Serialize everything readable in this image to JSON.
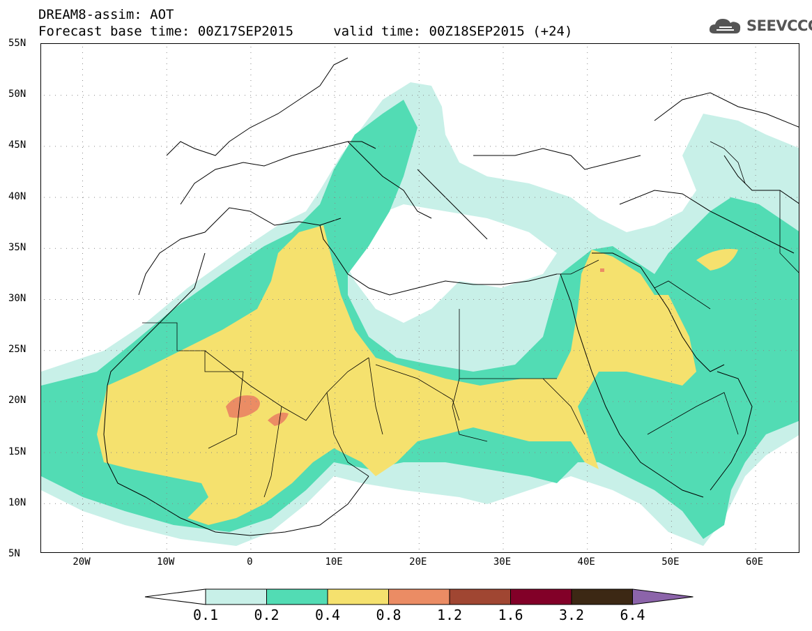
{
  "header": {
    "title_line1": "DREAM8-assim: AOT",
    "title_line2": "Forecast base time: 00Z17SEP2015     valid time: 00Z18SEP2015 (+24)",
    "logo_text": "SEEVCCC"
  },
  "axes": {
    "lat_labels": [
      "55N",
      "50N",
      "45N",
      "40N",
      "35N",
      "30N",
      "25N",
      "20N",
      "15N",
      "10N",
      "5N"
    ],
    "lon_labels": [
      "20W",
      "10W",
      "0",
      "10E",
      "20E",
      "30E",
      "40E",
      "50E",
      "60E"
    ]
  },
  "colorbar": {
    "labels": [
      "0.1",
      "0.2",
      "0.4",
      "0.8",
      "1.2",
      "1.6",
      "3.2",
      "6.4"
    ],
    "colors": [
      "#ffffff",
      "#c8f0e8",
      "#52dcb4",
      "#f5e16e",
      "#eb8c64",
      "#a04632",
      "#820028",
      "#3c2814",
      "#8c64aa"
    ]
  },
  "map_legend_levels": {
    "aot_0_1_0_2": "#c8f0e8",
    "aot_0_2_0_4": "#52dcb4",
    "aot_0_4_0_8": "#f5e16e",
    "aot_0_8_1_2": "#eb8c64"
  }
}
